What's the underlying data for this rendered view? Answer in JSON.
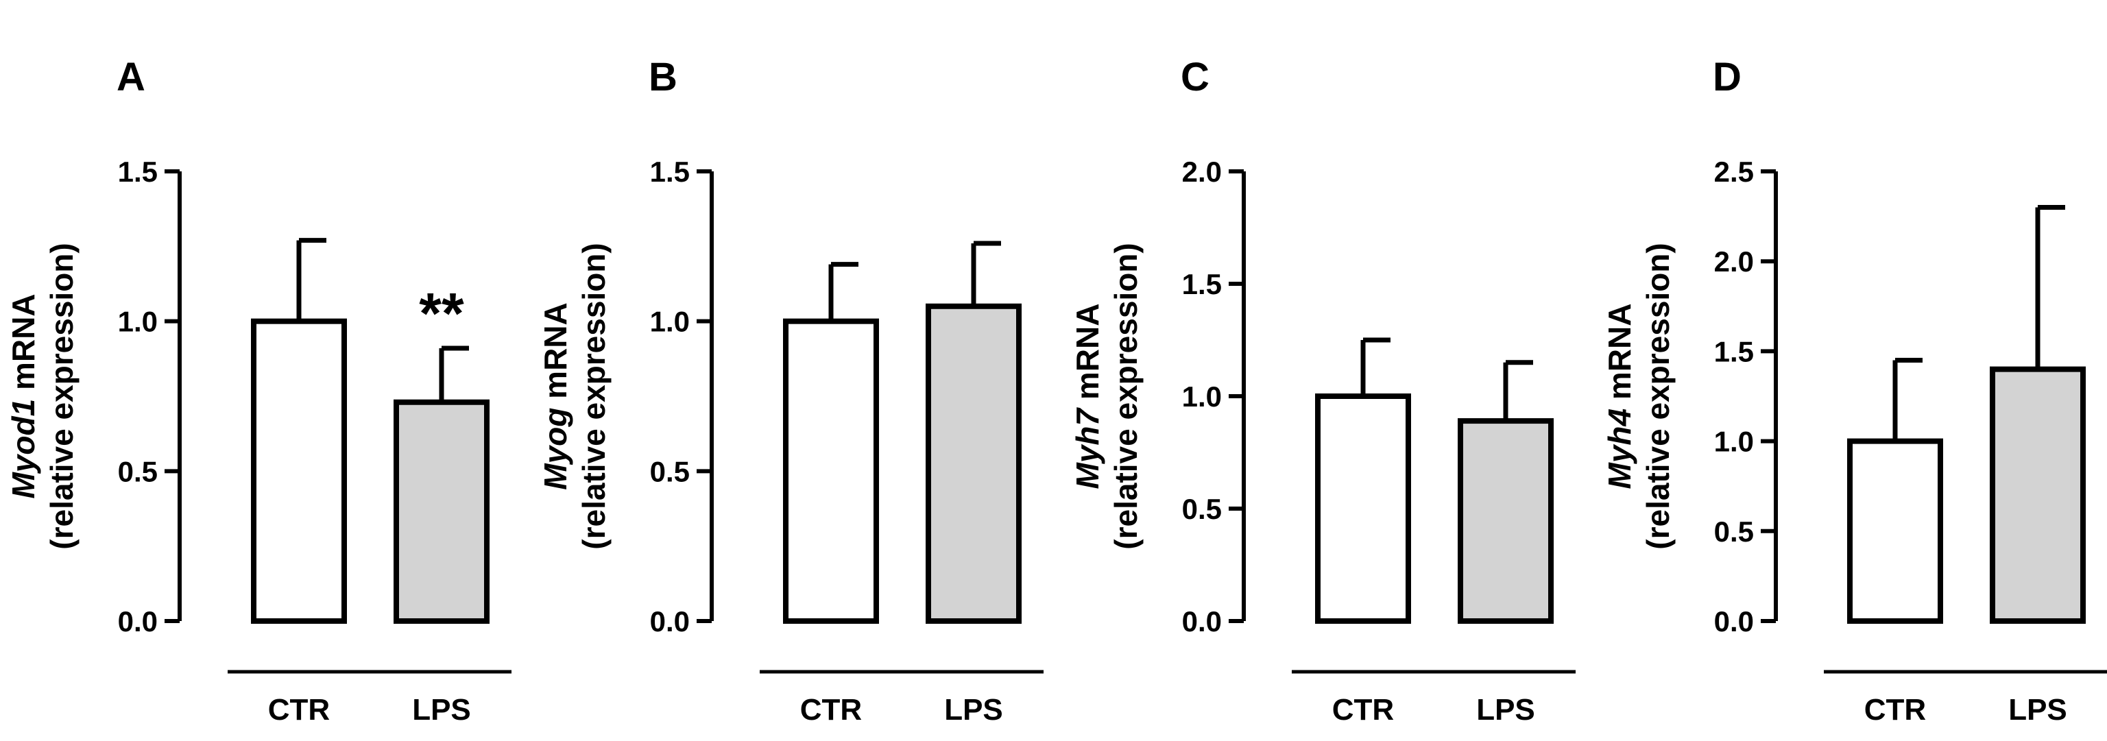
{
  "chart_data": [
    {
      "type": "bar",
      "panel": "A",
      "categories": [
        "CTR",
        "LPS"
      ],
      "values": [
        1.0,
        0.73
      ],
      "errors": [
        0.27,
        0.18
      ],
      "ylim": [
        0,
        1.5
      ],
      "yticks": [
        "0.0",
        "0.5",
        "1.0",
        "1.5"
      ],
      "ylabel_gene": "Myod1",
      "ylabel_suffix": " mRNA",
      "ylabel_line2": "(relative expression)",
      "annotations": [
        "",
        "**"
      ],
      "colors": [
        "#ffffff",
        "#d3d3d3"
      ]
    },
    {
      "type": "bar",
      "panel": "B",
      "categories": [
        "CTR",
        "LPS"
      ],
      "values": [
        1.0,
        1.05
      ],
      "errors": [
        0.19,
        0.21
      ],
      "ylim": [
        0,
        1.5
      ],
      "yticks": [
        "0.0",
        "0.5",
        "1.0",
        "1.5"
      ],
      "ylabel_gene": "Myog",
      "ylabel_suffix": " mRNA",
      "ylabel_line2": "(relative expression)",
      "annotations": [
        "",
        ""
      ],
      "colors": [
        "#ffffff",
        "#d3d3d3"
      ]
    },
    {
      "type": "bar",
      "panel": "C",
      "categories": [
        "CTR",
        "LPS"
      ],
      "values": [
        1.0,
        0.89
      ],
      "errors": [
        0.25,
        0.26
      ],
      "ylim": [
        0,
        2.0
      ],
      "yticks": [
        "0.0",
        "0.5",
        "1.0",
        "1.5",
        "2.0"
      ],
      "ylabel_gene": "Myh7",
      "ylabel_suffix": " mRNA",
      "ylabel_line2": "(relative expression)",
      "annotations": [
        "",
        ""
      ],
      "colors": [
        "#ffffff",
        "#d3d3d3"
      ]
    },
    {
      "type": "bar",
      "panel": "D",
      "categories": [
        "CTR",
        "LPS"
      ],
      "values": [
        1.0,
        1.4
      ],
      "errors": [
        0.45,
        0.9
      ],
      "ylim": [
        0,
        2.5
      ],
      "yticks": [
        "0.0",
        "0.5",
        "1.0",
        "1.5",
        "2.0",
        "2.5"
      ],
      "ylabel_gene": "Myh4",
      "ylabel_suffix": " mRNA",
      "ylabel_line2": "(relative expression)",
      "annotations": [
        "",
        ""
      ],
      "colors": [
        "#ffffff",
        "#d3d3d3"
      ]
    }
  ]
}
